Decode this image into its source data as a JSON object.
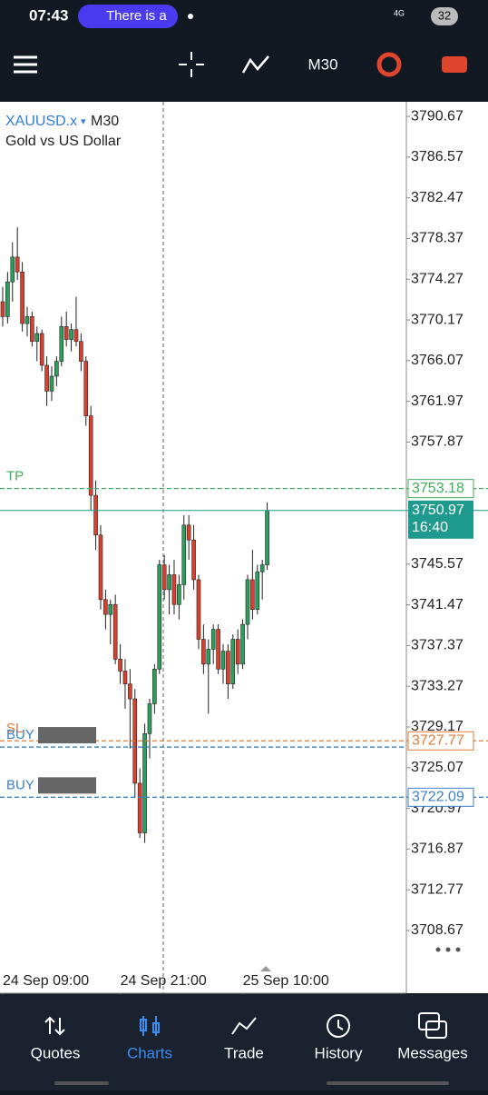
{
  "status_bar": {
    "time": "07:43",
    "notification": "There is a",
    "network": "4G",
    "battery": "32"
  },
  "toolbar": {
    "timeframe": "M30"
  },
  "chart_data": {
    "type": "candlestick",
    "symbol": "XAUUSD.x",
    "timeframe": "M30",
    "description": "Gold vs US Dollar",
    "up_color": "#2e9e5c",
    "down_color": "#d9412e",
    "ohlc": [
      [
        3772,
        3773.5,
        3769.5,
        3770.5
      ],
      [
        3770.5,
        3775,
        3769.8,
        3774
      ],
      [
        3774,
        3778,
        3772,
        3776.5
      ],
      [
        3776.5,
        3779.5,
        3774.2,
        3775
      ],
      [
        3775,
        3776,
        3769,
        3769.8
      ],
      [
        3769.8,
        3771.5,
        3768.5,
        3770.5
      ],
      [
        3770.5,
        3771,
        3767.5,
        3768
      ],
      [
        3768,
        3769.5,
        3766,
        3768.8
      ],
      [
        3768.8,
        3769.2,
        3765,
        3765.6
      ],
      [
        3765.6,
        3766.5,
        3761.5,
        3763
      ],
      [
        3763,
        3765.5,
        3762,
        3764.5
      ],
      [
        3764.5,
        3766.5,
        3763.5,
        3766
      ],
      [
        3766,
        3770.5,
        3765.5,
        3769.5
      ],
      [
        3769.5,
        3771,
        3767.5,
        3768.2
      ],
      [
        3768.2,
        3769.8,
        3767,
        3769.2
      ],
      [
        3769.2,
        3772.5,
        3767.5,
        3768
      ],
      [
        3768,
        3768.8,
        3765,
        3766
      ],
      [
        3766,
        3766.5,
        3759.5,
        3760.5
      ],
      [
        3760.5,
        3761.5,
        3751,
        3752.5
      ],
      [
        3752.5,
        3754,
        3747,
        3748.5
      ],
      [
        3748.5,
        3749.5,
        3741,
        3742
      ],
      [
        3742,
        3743,
        3739,
        3740.5
      ],
      [
        3740.5,
        3742,
        3737.5,
        3741.5
      ],
      [
        3741.5,
        3742.5,
        3735.5,
        3736
      ],
      [
        3736,
        3737.5,
        3733.5,
        3734.8
      ],
      [
        3734.8,
        3736,
        3731,
        3733.5
      ],
      [
        3733.5,
        3735,
        3727,
        3732
      ],
      [
        3732,
        3733,
        3722,
        3723.5
      ],
      [
        3723.5,
        3725,
        3718,
        3718.5
      ],
      [
        3718.5,
        3729.5,
        3717.5,
        3728.5
      ],
      [
        3728.5,
        3732,
        3726,
        3731.5
      ],
      [
        3731.5,
        3735.5,
        3730.5,
        3735
      ],
      [
        3735,
        3746,
        3734.5,
        3745.5
      ],
      [
        3745.5,
        3746.5,
        3742,
        3743
      ],
      [
        3743,
        3745.5,
        3740.5,
        3744.5
      ],
      [
        3744.5,
        3746,
        3740.5,
        3741.5
      ],
      [
        3741.5,
        3744.5,
        3740,
        3743.5
      ],
      [
        3743.5,
        3750.5,
        3742,
        3749.5
      ],
      [
        3749.5,
        3750.5,
        3746,
        3748
      ],
      [
        3748,
        3749.5,
        3743,
        3744
      ],
      [
        3744,
        3744.5,
        3737,
        3738
      ],
      [
        3738,
        3739.5,
        3734.5,
        3735.5
      ],
      [
        3735.5,
        3738,
        3730.5,
        3737
      ],
      [
        3737,
        3739.5,
        3735.5,
        3739
      ],
      [
        3739,
        3739.5,
        3734.5,
        3735
      ],
      [
        3735,
        3737.5,
        3733.5,
        3736.8
      ],
      [
        3736.8,
        3737.5,
        3732,
        3733.5
      ],
      [
        3733.5,
        3738.5,
        3733,
        3738
      ],
      [
        3738,
        3739,
        3734.5,
        3735.5
      ],
      [
        3735.5,
        3740,
        3735,
        3739.5
      ],
      [
        3739.5,
        3744.5,
        3738,
        3744
      ],
      [
        3744,
        3747,
        3740,
        3741
      ],
      [
        3741,
        3745.5,
        3740.5,
        3744.8
      ],
      [
        3744.8,
        3746,
        3742,
        3745.5
      ],
      [
        3745.5,
        3751.8,
        3745,
        3750.97
      ]
    ],
    "countdown": "16:40",
    "bid_color": "#1f9a8e",
    "levels": [
      {
        "label": "TP",
        "value": 3753.18,
        "color": "#3fae5a",
        "show_price": true
      },
      {
        "label": "SL",
        "value": 3727.77,
        "color": "#e07b39",
        "show_price": true
      },
      {
        "label": "BUY",
        "value": 3727.15,
        "color": "#3b7fc4",
        "show_price": false
      },
      {
        "label": "BUY",
        "value": 3722.09,
        "color": "#3b7fc4",
        "show_price": true
      }
    ],
    "ylim": [
      3702.35,
      3792.14
    ],
    "yticks": [
      3790.67,
      3786.57,
      3782.47,
      3778.37,
      3774.27,
      3770.17,
      3766.07,
      3761.97,
      3757.87,
      3745.57,
      3741.47,
      3737.37,
      3733.27,
      3729.17,
      3725.07,
      3720.97,
      3716.87,
      3712.77,
      3708.67
    ],
    "xlim": [
      -0.55,
      82.41
    ],
    "xticks": [
      {
        "value": 0,
        "label": "24 Sep 09:00"
      },
      {
        "value": 24,
        "label": "24 Sep 21:00"
      },
      {
        "value": 49,
        "label": "25 Sep 10:00"
      }
    ]
  },
  "nav": {
    "items": [
      "Quotes",
      "Charts",
      "Trade",
      "History",
      "Messages"
    ],
    "active": 1
  }
}
